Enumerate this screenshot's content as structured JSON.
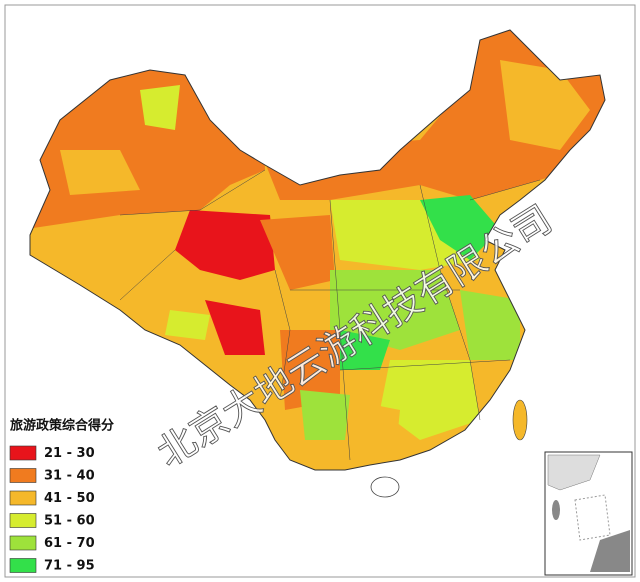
{
  "legend": {
    "title": "旅游政策综合得分",
    "items": [
      {
        "label": "21 - 30",
        "color": "#e8141b"
      },
      {
        "label": "31 - 40",
        "color": "#f07b1f"
      },
      {
        "label": "41 - 50",
        "color": "#f5b82a"
      },
      {
        "label": "51 - 60",
        "color": "#d6ec2f"
      },
      {
        "label": "61 - 70",
        "color": "#9ee23b"
      },
      {
        "label": "71 - 95",
        "color": "#33e04a"
      }
    ]
  },
  "watermark": "北京大地云游科技有限公司"
}
